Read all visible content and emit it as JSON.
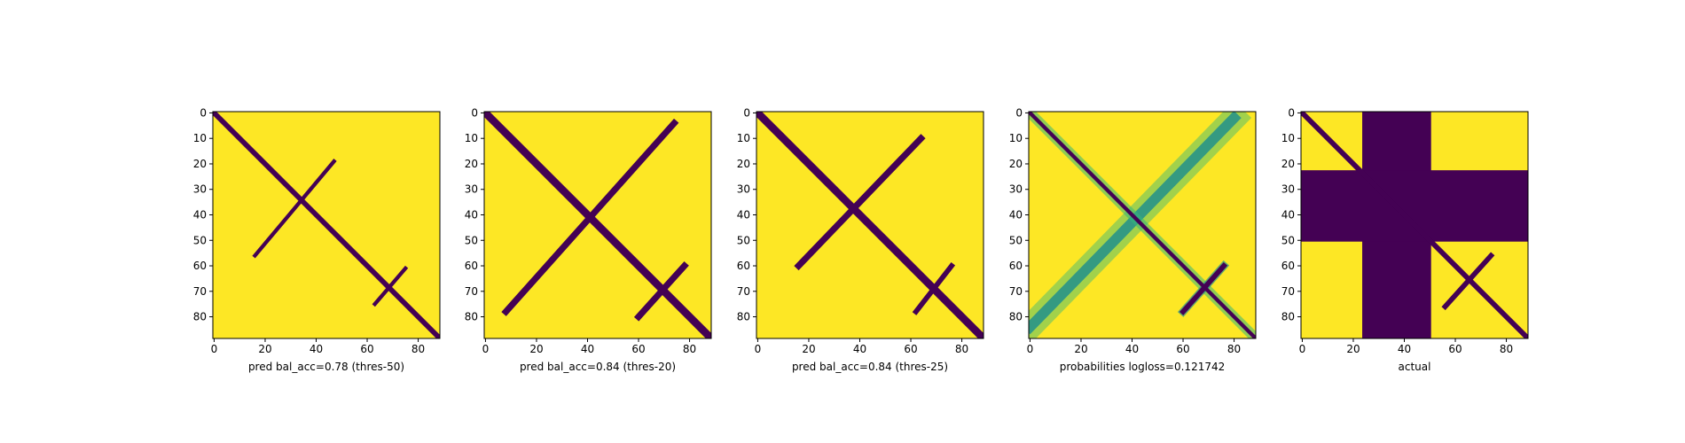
{
  "colors": {
    "high": "#fde725",
    "low": "#440154",
    "mid_green": "#35b779",
    "mid_teal": "#21918c",
    "mid_blue": "#31688e",
    "axis": "#000000"
  },
  "chart_data": [
    {
      "type": "heatmap",
      "title": "",
      "xlabel": "pred bal_acc=0.78 (thres-50)",
      "ylabel": "",
      "xlim": [
        0,
        88
      ],
      "ylim": [
        88,
        0
      ],
      "xticks": [
        0,
        20,
        40,
        60,
        80
      ],
      "yticks": [
        0,
        10,
        20,
        30,
        40,
        50,
        60,
        70,
        80
      ],
      "colormap": "viridis",
      "grid": false,
      "features": {
        "main_diagonal": [
          [
            0,
            0
          ],
          [
            88,
            88
          ]
        ],
        "diagonal_width": 2,
        "cross_band": [
          [
            16,
            56
          ],
          [
            47,
            19
          ]
        ],
        "cross_width": 1.5,
        "branch_x": [
          [
            63,
            75
          ],
          [
            75,
            61
          ]
        ],
        "branch_width": 1.5
      }
    },
    {
      "type": "heatmap",
      "title": "",
      "xlabel": "pred bal_acc=0.84 (thres-20)",
      "ylabel": "",
      "xlim": [
        0,
        88
      ],
      "ylim": [
        88,
        0
      ],
      "xticks": [
        0,
        20,
        40,
        60,
        80
      ],
      "yticks": [
        0,
        10,
        20,
        30,
        40,
        50,
        60,
        70,
        80
      ],
      "colormap": "viridis",
      "grid": false,
      "features": {
        "main_diagonal": [
          [
            0,
            0
          ],
          [
            88,
            88
          ]
        ],
        "diagonal_width": 3,
        "cross_band": [
          [
            8,
            78
          ],
          [
            74,
            4
          ]
        ],
        "cross_width": 2.5,
        "branch_x": [
          [
            60,
            80
          ],
          [
            78,
            60
          ]
        ],
        "branch_width": 2.5
      }
    },
    {
      "type": "heatmap",
      "title": "",
      "xlabel": "pred bal_acc=0.84 (thres-25)",
      "ylabel": "",
      "xlim": [
        0,
        88
      ],
      "ylim": [
        88,
        0
      ],
      "xticks": [
        0,
        20,
        40,
        60,
        80
      ],
      "yticks": [
        0,
        10,
        20,
        30,
        40,
        50,
        60,
        70,
        80
      ],
      "colormap": "viridis",
      "grid": false,
      "features": {
        "main_diagonal": [
          [
            0,
            0
          ],
          [
            88,
            88
          ]
        ],
        "diagonal_width": 3,
        "cross_band": [
          [
            16,
            60
          ],
          [
            64,
            10
          ]
        ],
        "cross_width": 2.5,
        "branch_x": [
          [
            62,
            78
          ],
          [
            76,
            60
          ]
        ],
        "branch_width": 2
      }
    },
    {
      "type": "heatmap",
      "title": "",
      "xlabel": "probabilities logloss=0.121742",
      "ylabel": "",
      "xlim": [
        0,
        88
      ],
      "ylim": [
        88,
        0
      ],
      "xticks": [
        0,
        20,
        40,
        60,
        80
      ],
      "yticks": [
        0,
        10,
        20,
        30,
        40,
        50,
        60,
        70,
        80
      ],
      "colormap": "viridis",
      "grid": false,
      "features": {
        "main_diagonal": [
          [
            0,
            0
          ],
          [
            88,
            88
          ]
        ],
        "diagonal_width": 1.5,
        "cross_band": [
          [
            0,
            84
          ],
          [
            80,
            2
          ]
        ],
        "cross_width": 4,
        "branch_x": [
          [
            60,
            78
          ],
          [
            76,
            60
          ]
        ],
        "branch_width": 2
      }
    },
    {
      "type": "heatmap",
      "title": "",
      "xlabel": "actual",
      "ylabel": "",
      "xlim": [
        0,
        88
      ],
      "ylim": [
        88,
        0
      ],
      "xticks": [
        0,
        20,
        40,
        60,
        80
      ],
      "yticks": [
        0,
        10,
        20,
        30,
        40,
        50,
        60,
        70,
        80
      ],
      "colormap": "viridis",
      "grid": false,
      "features": {
        "main_diagonal": [
          [
            0,
            0
          ],
          [
            88,
            88
          ]
        ],
        "diagonal_width": 2,
        "masked_columns": [
          24,
          51
        ],
        "masked_rows": [
          23,
          51
        ],
        "branch_x": [
          [
            56,
            76
          ],
          [
            74,
            56
          ]
        ],
        "branch_width": 2
      }
    }
  ]
}
